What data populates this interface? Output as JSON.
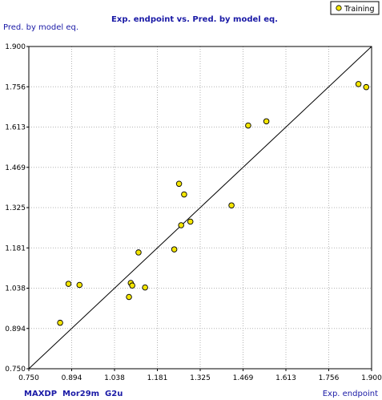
{
  "chart_data": {
    "type": "scatter",
    "title": "Exp. endpoint vs. Pred. by model eq.",
    "xlabel": "Exp. endpoint",
    "ylabel": "Pred. by model eq.",
    "footer": "MAXDP  Mor29m  G2u",
    "xlim": [
      0.75,
      1.9
    ],
    "ylim": [
      0.75,
      1.9
    ],
    "xticks": [
      "0.750",
      "0.894",
      "1.038",
      "1.181",
      "1.325",
      "1.469",
      "1.613",
      "1.756",
      "1.900"
    ],
    "yticks": [
      "0.750",
      "0.894",
      "1.038",
      "1.181",
      "1.325",
      "1.469",
      "1.613",
      "1.756",
      "1.900"
    ],
    "grid": true,
    "legend": "top-right",
    "reference_line": "y = x",
    "series": [
      {
        "name": "Training",
        "color": "#f5e600",
        "x": [
          0.855,
          0.883,
          0.92,
          1.086,
          1.092,
          1.097,
          1.118,
          1.14,
          1.238,
          1.254,
          1.261,
          1.271,
          1.292,
          1.43,
          1.486,
          1.547,
          1.856,
          1.882
        ],
        "y": [
          0.914,
          1.053,
          1.049,
          1.006,
          1.056,
          1.047,
          1.165,
          1.04,
          1.176,
          1.41,
          1.262,
          1.372,
          1.275,
          1.333,
          1.618,
          1.633,
          1.766,
          1.755
        ]
      }
    ]
  }
}
